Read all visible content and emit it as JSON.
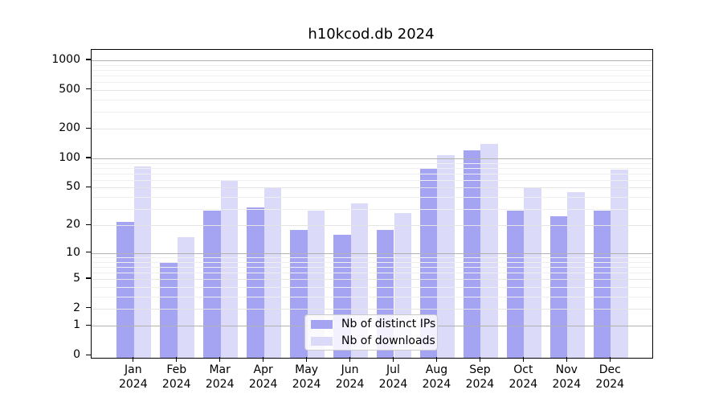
{
  "title": "h10kcod.db 2024",
  "chart_data": {
    "type": "bar",
    "title": "h10kcod.db 2024",
    "categories": [
      "Jan",
      "Feb",
      "Mar",
      "Apr",
      "May",
      "Jun",
      "Jul",
      "Aug",
      "Sep",
      "Oct",
      "Nov",
      "Dec"
    ],
    "category_year": "2024",
    "series": [
      {
        "name": "Nb of distinct IPs",
        "color": "#a5a4f2",
        "values": [
          22,
          8,
          29,
          31,
          18,
          16,
          18,
          79,
          120,
          29,
          25,
          29
        ]
      },
      {
        "name": "Nb of downloads",
        "color": "#dbdaf9",
        "values": [
          82,
          15,
          59,
          49,
          29,
          34,
          27,
          108,
          142,
          49,
          45,
          77
        ]
      }
    ],
    "y_scale": "log(1+x)",
    "y_ticks": [
      0,
      1,
      2,
      5,
      10,
      20,
      50,
      100,
      200,
      500,
      1000
    ],
    "y_minor_ticks": [
      3,
      4,
      6,
      7,
      8,
      9,
      30,
      40,
      60,
      70,
      80,
      90,
      300,
      400,
      600,
      700,
      800,
      900
    ],
    "ylim": [
      0,
      1000
    ],
    "grid": true,
    "legend_position": "lower center"
  },
  "legend": {
    "items": [
      {
        "label": "Nb of distinct IPs",
        "color": "#a5a4f2"
      },
      {
        "label": "Nb of downloads",
        "color": "#dbdaf9"
      }
    ]
  },
  "colors": {
    "major_grid": "#b2b2b2",
    "sub_grid": "#e4e4e4",
    "minor_grid": "#efefef",
    "spine": "#000000",
    "text": "#000000"
  }
}
